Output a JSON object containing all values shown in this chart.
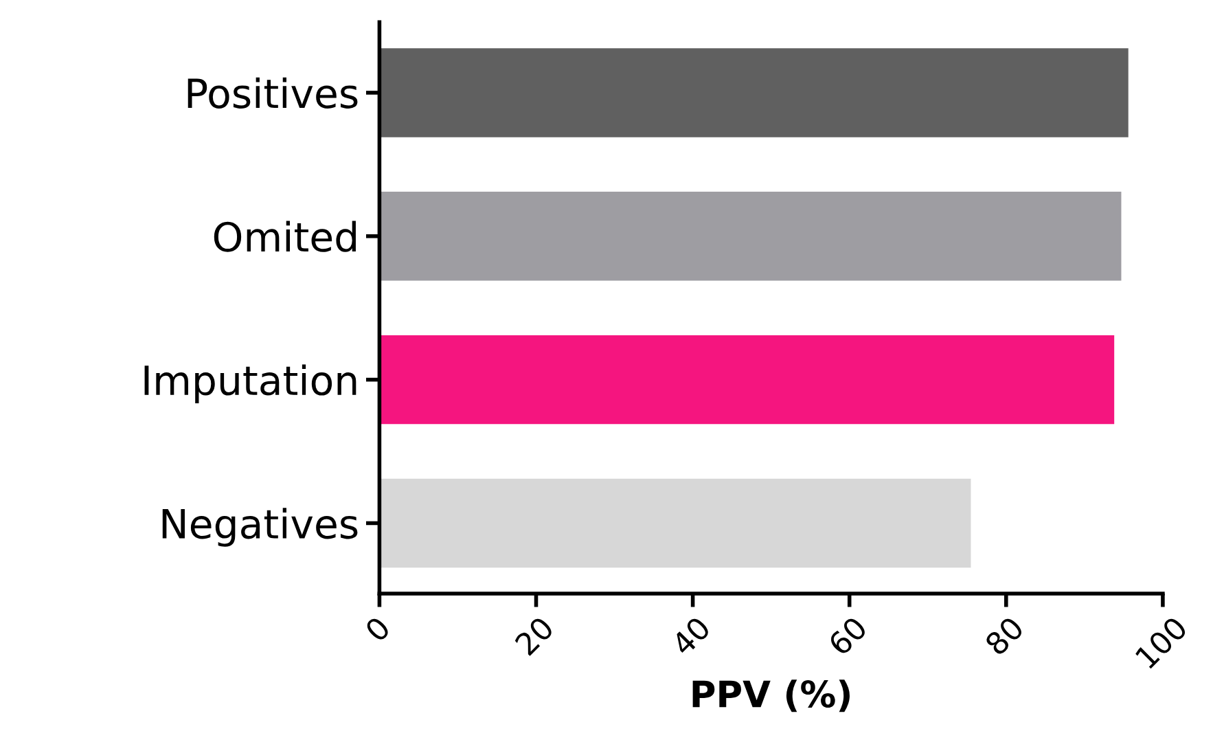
{
  "chart_data": {
    "type": "bar",
    "orientation": "horizontal",
    "xlabel": "PPV (%)",
    "categories": [
      "Positives",
      "Omited",
      "Imputation",
      "Negatives"
    ],
    "values": [
      95.6,
      94.7,
      93.8,
      75.5
    ],
    "colors": [
      "#606060",
      "#9e9da2",
      "#f5157f",
      "#d7d7d7"
    ],
    "xlim": [
      0,
      100
    ],
    "xticks": [
      0,
      20,
      40,
      60,
      80,
      100
    ],
    "grid": false,
    "legend": false
  }
}
